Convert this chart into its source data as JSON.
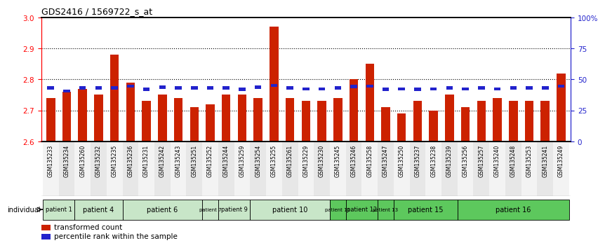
{
  "title": "GDS2416 / 1569722_s_at",
  "samples": [
    "GSM135233",
    "GSM135234",
    "GSM135260",
    "GSM135232",
    "GSM135235",
    "GSM135236",
    "GSM135231",
    "GSM135242",
    "GSM135243",
    "GSM135251",
    "GSM135252",
    "GSM135244",
    "GSM135259",
    "GSM135254",
    "GSM135255",
    "GSM135261",
    "GSM135229",
    "GSM135230",
    "GSM135245",
    "GSM135246",
    "GSM135258",
    "GSM135247",
    "GSM135250",
    "GSM135237",
    "GSM135238",
    "GSM135239",
    "GSM135256",
    "GSM135257",
    "GSM135240",
    "GSM135248",
    "GSM135253",
    "GSM135241",
    "GSM135249"
  ],
  "bar_values": [
    2.74,
    2.76,
    2.77,
    2.75,
    2.88,
    2.79,
    2.73,
    2.75,
    2.74,
    2.71,
    2.72,
    2.75,
    2.75,
    2.74,
    2.97,
    2.74,
    2.73,
    2.73,
    2.74,
    2.8,
    2.85,
    2.71,
    2.69,
    2.73,
    2.7,
    2.75,
    2.71,
    2.73,
    2.74,
    2.73,
    2.73,
    2.73,
    2.82
  ],
  "percentile_values": [
    2.773,
    2.762,
    2.773,
    2.773,
    2.773,
    2.778,
    2.768,
    2.775,
    2.773,
    2.773,
    2.773,
    2.773,
    2.768,
    2.775,
    2.78,
    2.773,
    2.769,
    2.769,
    2.773,
    2.777,
    2.778,
    2.768,
    2.769,
    2.768,
    2.769,
    2.773,
    2.769,
    2.773,
    2.769,
    2.773,
    2.773,
    2.773,
    2.778
  ],
  "ymin": 2.6,
  "ymax": 3.0,
  "yticks": [
    2.6,
    2.7,
    2.8,
    2.9,
    3.0
  ],
  "right_yticks": [
    0,
    25,
    50,
    75,
    100
  ],
  "bar_color": "#cc2200",
  "blue_color": "#2222cc",
  "patients_map": [
    {
      "label": "patient 1",
      "indices": [
        0,
        1
      ],
      "color": "#c8e6c8"
    },
    {
      "label": "patient 4",
      "indices": [
        2,
        3,
        4
      ],
      "color": "#c8e6c8"
    },
    {
      "label": "patient 6",
      "indices": [
        5,
        6,
        7,
        8,
        9
      ],
      "color": "#c8e6c8"
    },
    {
      "label": "patient 7",
      "indices": [
        10
      ],
      "color": "#c8e6c8"
    },
    {
      "label": "patient 9",
      "indices": [
        11,
        12
      ],
      "color": "#c8e6c8"
    },
    {
      "label": "patient 10",
      "indices": [
        13,
        14,
        15,
        16,
        17
      ],
      "color": "#c8e6c8"
    },
    {
      "label": "patient 11",
      "indices": [
        18
      ],
      "color": "#5dc85d"
    },
    {
      "label": "patient 12",
      "indices": [
        19,
        20
      ],
      "color": "#5dc85d"
    },
    {
      "label": "patient 13",
      "indices": [
        21
      ],
      "color": "#5dc85d"
    },
    {
      "label": "patient 15",
      "indices": [
        22,
        23,
        24,
        25
      ],
      "color": "#5dc85d"
    },
    {
      "label": "patient 16",
      "indices": [
        26,
        27,
        28,
        29,
        30,
        31,
        32
      ],
      "color": "#5dc85d"
    }
  ]
}
